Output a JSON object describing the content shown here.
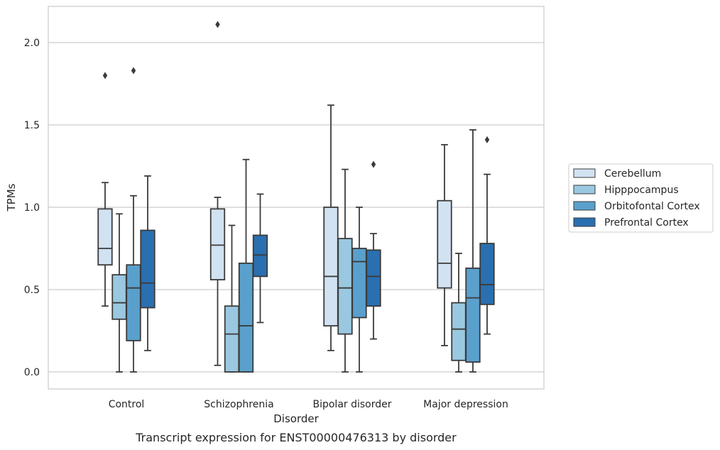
{
  "chart_data": {
    "type": "box",
    "xlabel": "Disorder",
    "ylabel": "TPMs",
    "caption": "Transcript expression for ENST00000476313 by disorder",
    "ylim": [
      -0.1,
      2.23
    ],
    "yticks": [
      0.0,
      0.5,
      1.0,
      1.5,
      2.0
    ],
    "ytick_labels": [
      "0.0",
      "0.5",
      "1.0",
      "1.5",
      "2.0"
    ],
    "grid": "horizontal",
    "legend_position": "right",
    "categories": [
      "Control",
      "Schizophrenia",
      "Bipolar disorder",
      "Major depression"
    ],
    "series": [
      {
        "name": "Cerebellum",
        "color": "#d1e2f2",
        "boxes": [
          {
            "whisker_low": 0.4,
            "q1": 0.65,
            "median": 0.75,
            "q3": 0.99,
            "whisker_high": 1.15,
            "outliers": [
              1.8
            ]
          },
          {
            "whisker_low": 0.04,
            "q1": 0.56,
            "median": 0.77,
            "q3": 0.99,
            "whisker_high": 1.06,
            "outliers": [
              2.11
            ]
          },
          {
            "whisker_low": 0.13,
            "q1": 0.28,
            "median": 0.58,
            "q3": 1.0,
            "whisker_high": 1.62,
            "outliers": []
          },
          {
            "whisker_low": 0.16,
            "q1": 0.51,
            "median": 0.66,
            "q3": 1.04,
            "whisker_high": 1.38,
            "outliers": []
          }
        ]
      },
      {
        "name": "Hipppocampus",
        "color": "#9ac8e0",
        "boxes": [
          {
            "whisker_low": 0.0,
            "q1": 0.32,
            "median": 0.42,
            "q3": 0.59,
            "whisker_high": 0.96,
            "outliers": []
          },
          {
            "whisker_low": 0.0,
            "q1": 0.0,
            "median": 0.23,
            "q3": 0.4,
            "whisker_high": 0.89,
            "outliers": []
          },
          {
            "whisker_low": 0.0,
            "q1": 0.23,
            "median": 0.51,
            "q3": 0.81,
            "whisker_high": 1.23,
            "outliers": []
          },
          {
            "whisker_low": 0.0,
            "q1": 0.07,
            "median": 0.26,
            "q3": 0.42,
            "whisker_high": 0.72,
            "outliers": []
          }
        ]
      },
      {
        "name": "Orbitofontal Cortex",
        "color": "#5aa0cd",
        "boxes": [
          {
            "whisker_low": 0.0,
            "q1": 0.19,
            "median": 0.51,
            "q3": 0.65,
            "whisker_high": 1.07,
            "outliers": [
              1.83
            ]
          },
          {
            "whisker_low": 0.0,
            "q1": 0.0,
            "median": 0.28,
            "q3": 0.66,
            "whisker_high": 1.29,
            "outliers": []
          },
          {
            "whisker_low": 0.0,
            "q1": 0.33,
            "median": 0.67,
            "q3": 0.75,
            "whisker_high": 1.0,
            "outliers": []
          },
          {
            "whisker_low": 0.0,
            "q1": 0.06,
            "median": 0.45,
            "q3": 0.63,
            "whisker_high": 1.47,
            "outliers": []
          }
        ]
      },
      {
        "name": "Prefrontal Cortex",
        "color": "#2a6fb0",
        "boxes": [
          {
            "whisker_low": 0.13,
            "q1": 0.39,
            "median": 0.54,
            "q3": 0.86,
            "whisker_high": 1.19,
            "outliers": []
          },
          {
            "whisker_low": 0.3,
            "q1": 0.58,
            "median": 0.71,
            "q3": 0.83,
            "whisker_high": 1.08,
            "outliers": []
          },
          {
            "whisker_low": 0.2,
            "q1": 0.4,
            "median": 0.58,
            "q3": 0.74,
            "whisker_high": 0.84,
            "outliers": [
              1.26
            ]
          },
          {
            "whisker_low": 0.23,
            "q1": 0.41,
            "median": 0.53,
            "q3": 0.78,
            "whisker_high": 1.2,
            "outliers": [
              1.41
            ]
          }
        ]
      }
    ]
  }
}
